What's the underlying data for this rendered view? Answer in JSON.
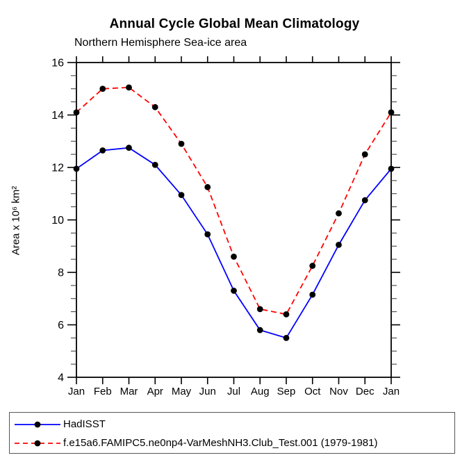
{
  "chart_data": {
    "type": "line",
    "title": "Annual Cycle Global Mean Climatology",
    "subtitle": "Northern Hemisphere Sea-ice area",
    "ylabel": "Area x 10⁶ km²",
    "xlabel": "",
    "categories": [
      "Jan",
      "Feb",
      "Mar",
      "Apr",
      "May",
      "Jun",
      "Jul",
      "Aug",
      "Sep",
      "Oct",
      "Nov",
      "Dec",
      "Jan"
    ],
    "ylim": [
      4,
      16
    ],
    "ytick_major": [
      4,
      6,
      8,
      10,
      12,
      14,
      16
    ],
    "ytick_minor_step": 0.5,
    "grid": false,
    "legend_position": "bottom-outside-box",
    "axis_color": "#000000",
    "marker_color": "#000000",
    "series": [
      {
        "name": "HadISST",
        "color": "#0000ff",
        "line_style": "solid",
        "marker": "filled-circle",
        "values": [
          11.95,
          12.65,
          12.75,
          12.1,
          10.95,
          9.45,
          7.3,
          5.8,
          5.5,
          7.15,
          9.05,
          10.75,
          11.95
        ]
      },
      {
        "name": "f.e15a6.FAMIPC5.ne0np4-VarMeshNH3.Club_Test.001 (1979-1981)",
        "color": "#ff0000",
        "line_style": "dashed",
        "marker": "filled-circle",
        "values": [
          14.1,
          15.0,
          15.05,
          14.3,
          12.9,
          11.25,
          8.6,
          6.6,
          6.4,
          8.25,
          10.25,
          12.5,
          14.1
        ]
      }
    ]
  }
}
